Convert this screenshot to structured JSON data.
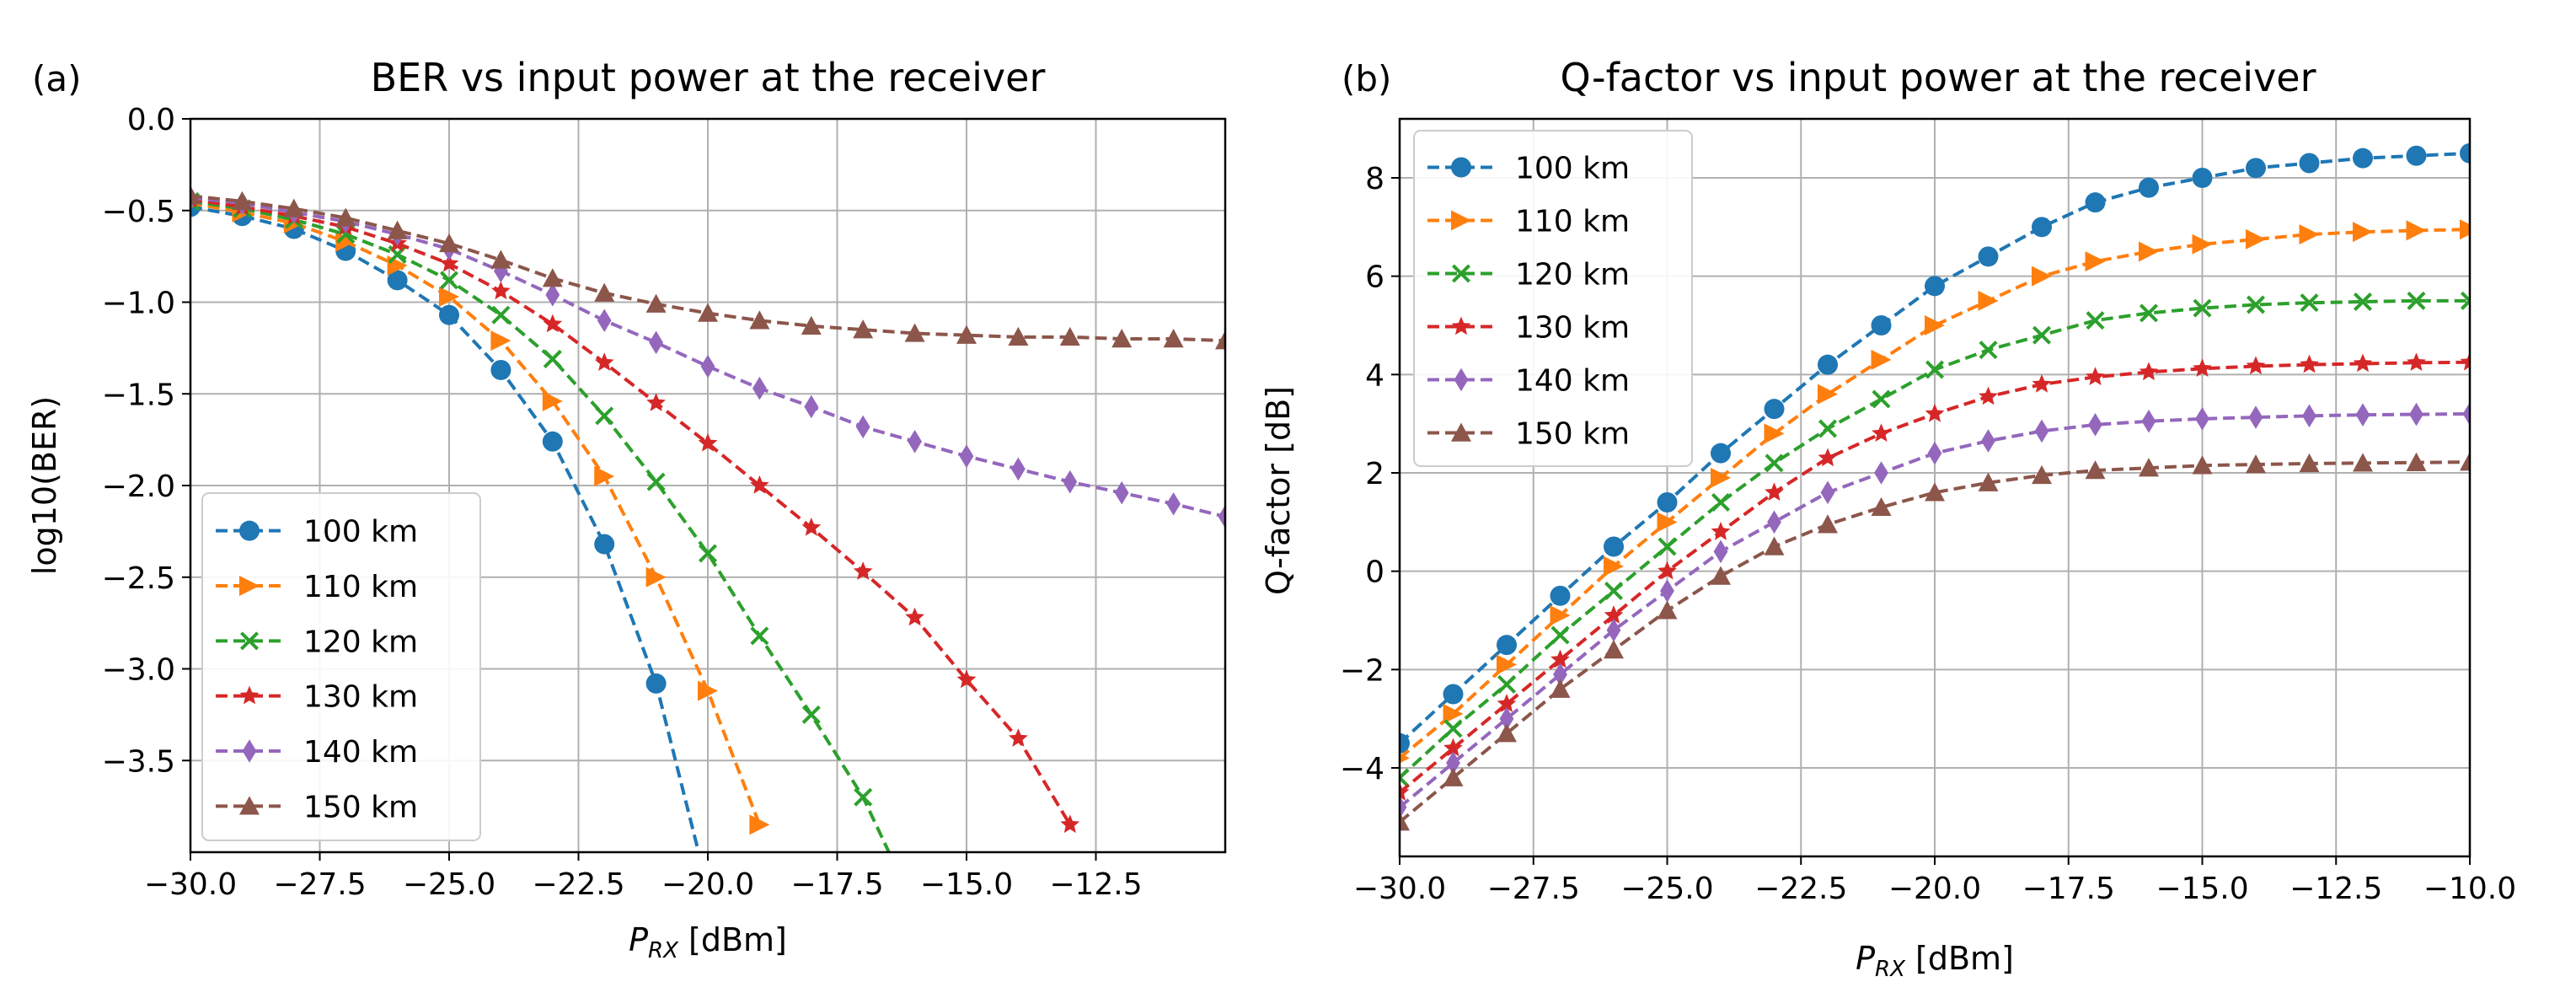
{
  "chart_data": [
    {
      "panel_label": "(a)",
      "type": "line",
      "title": "BER vs input power at the receiver",
      "xlabel_main": "P",
      "xlabel_sub": "RX",
      "xlabel_unit": " [dBm]",
      "ylabel": "log10(BER)",
      "xlim": [
        -30,
        -10
      ],
      "ylim": [
        -4.0,
        0.0
      ],
      "xticks": [
        -30,
        -27.5,
        -25,
        -22.5,
        -20,
        -17.5,
        -15,
        -12.5
      ],
      "xtick_labels": [
        "−30.0",
        "−27.5",
        "−25.0",
        "−22.5",
        "−20.0",
        "−17.5",
        "−15.0",
        "−12.5"
      ],
      "yticks": [
        0.0,
        -0.5,
        -1.0,
        -1.5,
        -2.0,
        -2.5,
        -3.0,
        -3.5
      ],
      "ytick_labels": [
        "0.0",
        "−0.5",
        "−1.0",
        "−1.5",
        "−2.0",
        "−2.5",
        "−3.0",
        "−3.5"
      ],
      "grid": true,
      "legend_position": "lower-left",
      "x": [
        -30,
        -29,
        -28,
        -27,
        -26,
        -25,
        -24,
        -23,
        -22,
        -21,
        -20,
        -19,
        -18,
        -17,
        -16,
        -15,
        -14,
        -13,
        -12,
        -11,
        -10
      ],
      "series": [
        {
          "name": "100 km",
          "color": "#1f77b4",
          "marker": "circle",
          "values": [
            -0.48,
            -0.53,
            -0.6,
            -0.72,
            -0.88,
            -1.07,
            -1.37,
            -1.76,
            -2.32,
            -3.08,
            -4.2,
            null,
            null,
            null,
            null,
            null,
            null,
            null,
            null,
            null,
            null
          ]
        },
        {
          "name": "110 km",
          "color": "#ff7f0e",
          "marker": "triangle-right",
          "values": [
            -0.46,
            -0.51,
            -0.57,
            -0.67,
            -0.8,
            -0.97,
            -1.21,
            -1.54,
            -1.95,
            -2.5,
            -3.12,
            -3.85,
            null,
            null,
            null,
            null,
            null,
            null,
            null,
            null,
            null
          ]
        },
        {
          "name": "120 km",
          "color": "#2ca02c",
          "marker": "x",
          "values": [
            -0.45,
            -0.49,
            -0.55,
            -0.63,
            -0.74,
            -0.88,
            -1.07,
            -1.31,
            -1.62,
            -1.98,
            -2.37,
            -2.82,
            -3.25,
            -3.7,
            -4.3,
            null,
            null,
            null,
            null,
            null,
            null
          ]
        },
        {
          "name": "130 km",
          "color": "#d62728",
          "marker": "star",
          "values": [
            -0.44,
            -0.48,
            -0.53,
            -0.59,
            -0.68,
            -0.79,
            -0.94,
            -1.12,
            -1.33,
            -1.55,
            -1.77,
            -2.0,
            -2.23,
            -2.47,
            -2.72,
            -3.06,
            -3.38,
            -3.85,
            null,
            null,
            null
          ]
        },
        {
          "name": "140 km",
          "color": "#9467bd",
          "marker": "thin-diamond",
          "values": [
            -0.43,
            -0.46,
            -0.51,
            -0.56,
            -0.63,
            -0.71,
            -0.83,
            -0.96,
            -1.1,
            -1.22,
            -1.35,
            -1.47,
            -1.57,
            -1.68,
            -1.76,
            -1.84,
            -1.91,
            -1.98,
            -2.04,
            -2.1,
            -2.17
          ]
        },
        {
          "name": "150 km",
          "color": "#8c564b",
          "marker": "triangle-up",
          "values": [
            -0.42,
            -0.45,
            -0.49,
            -0.54,
            -0.61,
            -0.68,
            -0.77,
            -0.87,
            -0.95,
            -1.01,
            -1.06,
            -1.1,
            -1.13,
            -1.15,
            -1.17,
            -1.18,
            -1.19,
            -1.19,
            -1.2,
            -1.2,
            -1.21
          ]
        }
      ]
    },
    {
      "panel_label": "(b)",
      "type": "line",
      "title": "Q-factor vs input power at the receiver",
      "xlabel_main": "P",
      "xlabel_sub": "RX",
      "xlabel_unit": " [dBm]",
      "ylabel": "Q-factor [dB]",
      "xlim": [
        -30,
        -10
      ],
      "ylim": [
        -5.8,
        9.2
      ],
      "xticks": [
        -30,
        -27.5,
        -25,
        -22.5,
        -20,
        -17.5,
        -15,
        -12.5,
        -10
      ],
      "xtick_labels": [
        "−30.0",
        "−27.5",
        "−25.0",
        "−22.5",
        "−20.0",
        "−17.5",
        "−15.0",
        "−12.5",
        "−10.0"
      ],
      "yticks": [
        8,
        6,
        4,
        2,
        0,
        -2,
        -4
      ],
      "ytick_labels": [
        "8",
        "6",
        "4",
        "2",
        "0",
        "−2",
        "−4"
      ],
      "grid": true,
      "legend_position": "upper-left",
      "x": [
        -30,
        -29,
        -28,
        -27,
        -26,
        -25,
        -24,
        -23,
        -22,
        -21,
        -20,
        -19,
        -18,
        -17,
        -16,
        -15,
        -14,
        -13,
        -12,
        -11,
        -10
      ],
      "series": [
        {
          "name": "100 km",
          "color": "#1f77b4",
          "marker": "circle",
          "values": [
            -3.5,
            -2.5,
            -1.5,
            -0.5,
            0.5,
            1.4,
            2.4,
            3.3,
            4.2,
            5.0,
            5.8,
            6.4,
            7.0,
            7.5,
            7.8,
            8.0,
            8.2,
            8.3,
            8.4,
            8.45,
            8.5
          ]
        },
        {
          "name": "110 km",
          "color": "#ff7f0e",
          "marker": "triangle-right",
          "values": [
            -3.8,
            -2.9,
            -1.9,
            -0.9,
            0.1,
            1.0,
            1.9,
            2.8,
            3.6,
            4.3,
            5.0,
            5.5,
            6.0,
            6.3,
            6.5,
            6.65,
            6.75,
            6.85,
            6.9,
            6.93,
            6.95
          ]
        },
        {
          "name": "120 km",
          "color": "#2ca02c",
          "marker": "x",
          "values": [
            -4.2,
            -3.2,
            -2.3,
            -1.3,
            -0.4,
            0.5,
            1.4,
            2.2,
            2.9,
            3.5,
            4.1,
            4.5,
            4.8,
            5.1,
            5.25,
            5.35,
            5.42,
            5.46,
            5.48,
            5.5,
            5.5
          ]
        },
        {
          "name": "130 km",
          "color": "#d62728",
          "marker": "star",
          "values": [
            -4.5,
            -3.6,
            -2.7,
            -1.8,
            -0.9,
            0.0,
            0.8,
            1.6,
            2.3,
            2.8,
            3.2,
            3.55,
            3.8,
            3.95,
            4.05,
            4.12,
            4.17,
            4.2,
            4.22,
            4.24,
            4.25
          ]
        },
        {
          "name": "140 km",
          "color": "#9467bd",
          "marker": "thin-diamond",
          "values": [
            -4.8,
            -3.9,
            -3.0,
            -2.1,
            -1.2,
            -0.4,
            0.4,
            1.0,
            1.6,
            2.0,
            2.4,
            2.65,
            2.85,
            2.98,
            3.05,
            3.1,
            3.13,
            3.16,
            3.18,
            3.19,
            3.2
          ]
        },
        {
          "name": "150 km",
          "color": "#8c564b",
          "marker": "triangle-up",
          "values": [
            -5.1,
            -4.2,
            -3.3,
            -2.4,
            -1.6,
            -0.8,
            -0.1,
            0.5,
            0.95,
            1.3,
            1.6,
            1.8,
            1.95,
            2.05,
            2.1,
            2.15,
            2.17,
            2.19,
            2.2,
            2.21,
            2.22
          ]
        }
      ]
    }
  ]
}
